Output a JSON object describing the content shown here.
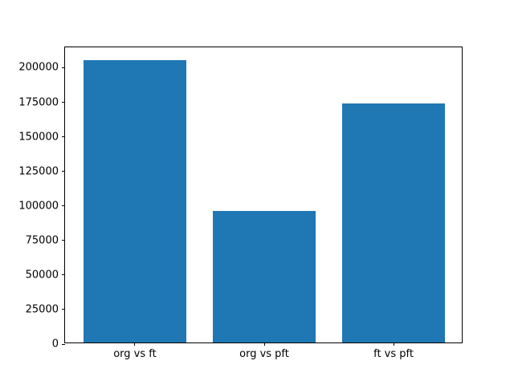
{
  "colors": {
    "background": "#ffffff",
    "spine": "#000000",
    "tick_text": "#000000"
  },
  "chart_data": {
    "type": "bar",
    "categories": [
      "org vs ft",
      "org vs pft",
      "ft vs pft"
    ],
    "values": [
      204400,
      95400,
      173200
    ],
    "title": "",
    "xlabel": "",
    "ylabel": "",
    "ylim": [
      0,
      214800
    ],
    "xlim": [
      -0.54,
      2.54
    ],
    "yticks": [
      0,
      25000,
      50000,
      75000,
      100000,
      125000,
      150000,
      175000,
      200000
    ],
    "bar_width": 0.8,
    "bar_color": "#1f77b4",
    "grid": false,
    "legend_position": "none"
  }
}
